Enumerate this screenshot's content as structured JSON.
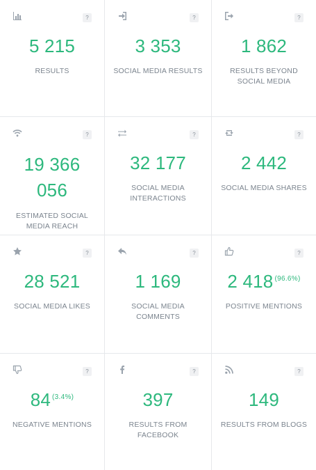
{
  "help_glyph": "?",
  "metrics": [
    {
      "icon": "bar-chart-icon",
      "value": "5 215",
      "label": "RESULTS"
    },
    {
      "icon": "sign-in-icon",
      "value": "3 353",
      "label": "SOCIAL MEDIA RESULTS"
    },
    {
      "icon": "sign-out-icon",
      "value": "1 862",
      "label": "RESULTS BEYOND SOCIAL MEDIA"
    },
    {
      "icon": "wifi-icon",
      "value": "19 366 056",
      "label": "ESTIMATED SOCIAL MEDIA REACH"
    },
    {
      "icon": "exchange-icon",
      "value": "32 177",
      "label": "SOCIAL MEDIA INTERACTIONS"
    },
    {
      "icon": "retweet-icon",
      "value": "2 442",
      "label": "SOCIAL MEDIA SHARES"
    },
    {
      "icon": "star-icon",
      "value": "28 521",
      "label": "SOCIAL MEDIA LIKES"
    },
    {
      "icon": "reply-icon",
      "value": "1 169",
      "label": "SOCIAL MEDIA COMMENTS"
    },
    {
      "icon": "thumbs-up-icon",
      "value": "2 418",
      "percent": "(96.6%)",
      "label": "POSITIVE MENTIONS"
    },
    {
      "icon": "thumbs-down-icon",
      "value": "84",
      "percent": "(3.4%)",
      "label": "NEGATIVE MENTIONS"
    },
    {
      "icon": "facebook-icon",
      "value": "397",
      "label": "RESULTS FROM FACEBOOK"
    },
    {
      "icon": "rss-icon",
      "value": "149",
      "label": "RESULTS FROM BLOGS"
    }
  ],
  "colors": {
    "value": "#2db87d",
    "label": "#7b848e",
    "icon": "#9aa3ad",
    "divider": "#e6e8eb"
  }
}
